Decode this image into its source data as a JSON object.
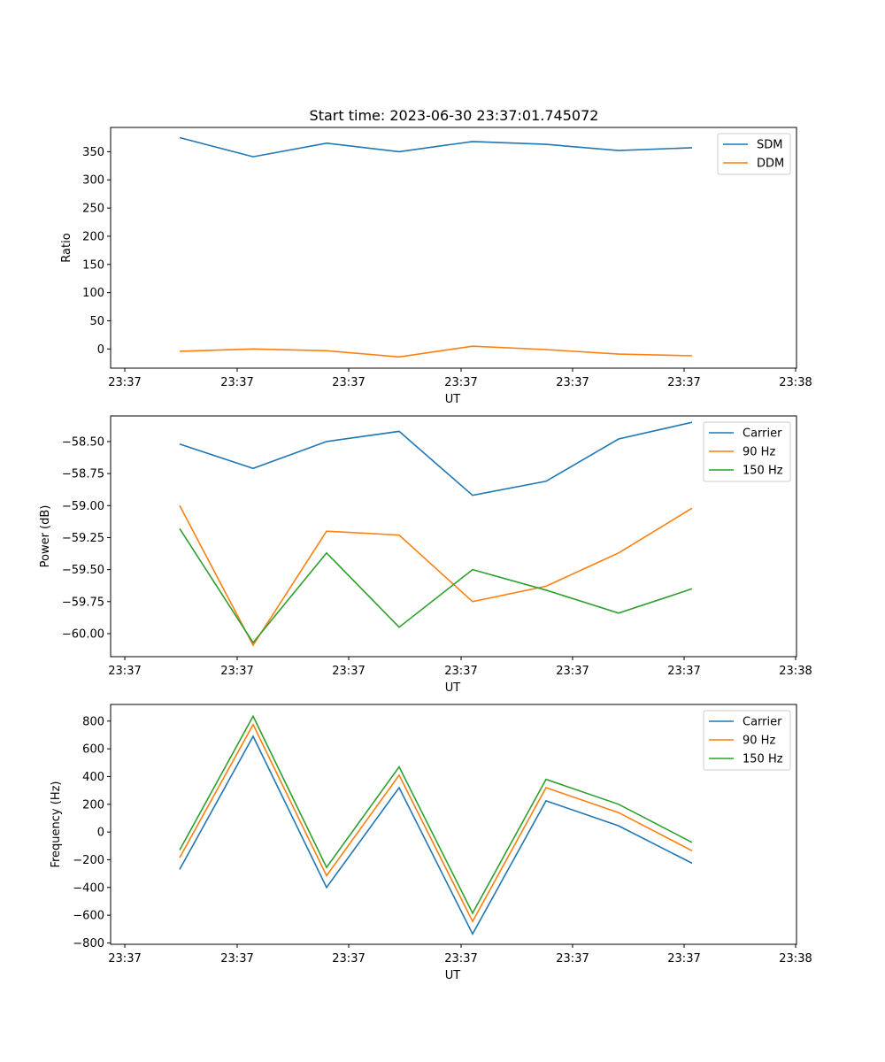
{
  "figure_title": "Start time: 2023-06-30 23:37:01.745072",
  "chart_data": [
    {
      "type": "line",
      "xlabel": "UT",
      "ylabel": "Ratio",
      "x_tick_labels": [
        "23:37",
        "23:37",
        "23:37",
        "23:37",
        "23:37",
        "23:37",
        "23:37",
        "23:38"
      ],
      "yticks": [
        0,
        50,
        100,
        150,
        200,
        250,
        300,
        350
      ],
      "ylim": [
        -34,
        393
      ],
      "legend_position": "top-right",
      "grid": false,
      "series": [
        {
          "name": "SDM",
          "color": "#1f77b4",
          "values": [
            375,
            341,
            365,
            350,
            368,
            363,
            352,
            357
          ]
        },
        {
          "name": "DDM",
          "color": "#ff7f0e",
          "values": [
            -4,
            0,
            -3,
            -14,
            5,
            -1,
            -9,
            -12
          ]
        }
      ]
    },
    {
      "type": "line",
      "xlabel": "UT",
      "ylabel": "Power (dB)",
      "x_tick_labels": [
        "23:37",
        "23:37",
        "23:37",
        "23:37",
        "23:37",
        "23:37",
        "23:37",
        "23:38"
      ],
      "yticks": [
        -60.0,
        -59.75,
        -59.5,
        -59.25,
        -59.0,
        -58.75,
        -58.5
      ],
      "ytick_labels": [
        "−60.00",
        "−59.75",
        "−59.50",
        "−59.25",
        "−59.00",
        "−58.75",
        "−58.50"
      ],
      "ylim": [
        -60.18,
        -58.3
      ],
      "legend_position": "top-right",
      "grid": false,
      "series": [
        {
          "name": "Carrier",
          "color": "#1f77b4",
          "values": [
            -58.52,
            -58.71,
            -58.5,
            -58.42,
            -58.92,
            -58.81,
            -58.48,
            -58.35
          ]
        },
        {
          "name": "90 Hz",
          "color": "#ff7f0e",
          "values": [
            -59.0,
            -60.09,
            -59.2,
            -59.23,
            -59.75,
            -59.63,
            -59.37,
            -59.02
          ]
        },
        {
          "name": "150 Hz",
          "color": "#2ca02c",
          "values": [
            -59.18,
            -60.07,
            -59.37,
            -59.95,
            -59.5,
            -59.66,
            -59.84,
            -59.65
          ]
        }
      ]
    },
    {
      "type": "line",
      "xlabel": "UT",
      "ylabel": "Frequency (Hz)",
      "x_tick_labels": [
        "23:37",
        "23:37",
        "23:37",
        "23:37",
        "23:37",
        "23:37",
        "23:37",
        "23:38"
      ],
      "yticks": [
        -800,
        -600,
        -400,
        -200,
        0,
        200,
        400,
        600,
        800
      ],
      "ytick_labels": [
        "−800",
        "−600",
        "−400",
        "−200",
        "0",
        "200",
        "400",
        "600",
        "800"
      ],
      "ylim": [
        -810,
        920
      ],
      "legend_position": "top-right",
      "grid": false,
      "series": [
        {
          "name": "Carrier",
          "color": "#1f77b4",
          "values": [
            -270,
            690,
            -400,
            320,
            -735,
            225,
            45,
            -225
          ]
        },
        {
          "name": "90 Hz",
          "color": "#ff7f0e",
          "values": [
            -185,
            775,
            -315,
            410,
            -645,
            320,
            140,
            -135
          ]
        },
        {
          "name": "150 Hz",
          "color": "#2ca02c",
          "values": [
            -130,
            835,
            -255,
            470,
            -585,
            380,
            200,
            -75
          ]
        }
      ]
    }
  ]
}
